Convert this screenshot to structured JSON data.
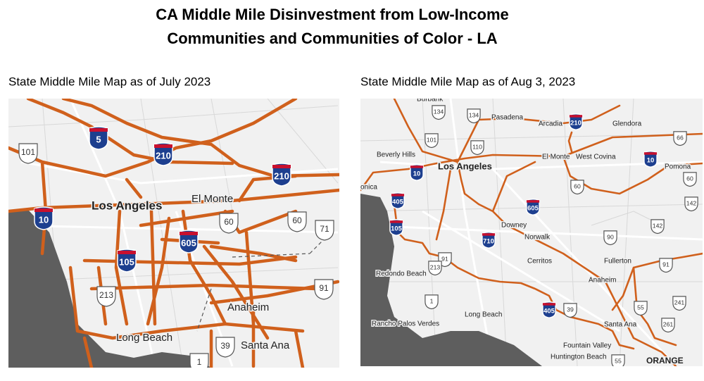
{
  "title": [
    "CA Middle Mile Disinvestment from Low-Income",
    "Communities and Communities of Color - LA"
  ],
  "maps": [
    {
      "caption": "State Middle Mile Map as of July 2023",
      "places": [
        "Los Angeles",
        "El Monte",
        "Anaheim",
        "Long Beach",
        "Santa Ana"
      ],
      "interstates": [
        "5",
        "210",
        "210",
        "10",
        "605",
        "105"
      ],
      "routes": [
        "101",
        "60",
        "60",
        "71",
        "213",
        "91",
        "39",
        "1"
      ]
    },
    {
      "caption": "State Middle Mile Map as of Aug 3, 2023",
      "places": [
        "Burbank",
        "Pasadena",
        "Arcadia",
        "Glendora",
        "Beverly Hills",
        "El Monte",
        "West Covina",
        "Pomona",
        "Los Angeles",
        "onica",
        "Downey",
        "Norwalk",
        "Fullerton",
        "Cerritos",
        "Redondo Beach",
        "Anaheim",
        "Long Beach",
        "Rancho Palos Verdes",
        "Santa Ana",
        "Fountain Valley",
        "Huntington Beach",
        "ORANGE"
      ],
      "interstates": [
        "210",
        "10",
        "10",
        "405",
        "605",
        "105",
        "710",
        "405"
      ],
      "routes": [
        "134",
        "134",
        "101",
        "110",
        "66",
        "60",
        "60",
        "142",
        "142",
        "90",
        "91",
        "213",
        "91",
        "1",
        "39",
        "55",
        "241",
        "261",
        "55"
      ]
    }
  ]
}
